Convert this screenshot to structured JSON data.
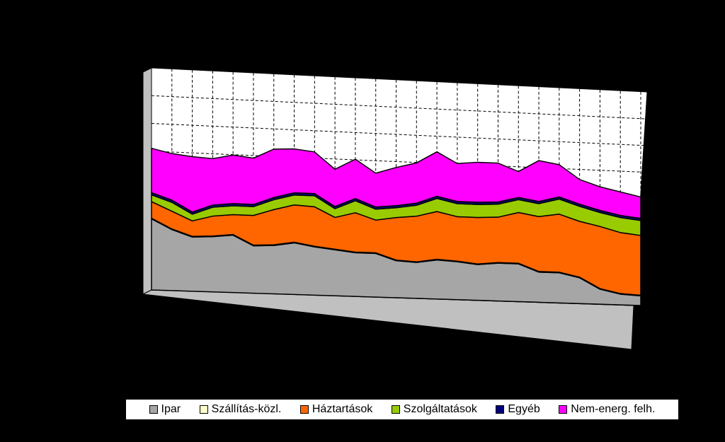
{
  "chart_data": {
    "type": "area",
    "stacked": true,
    "three_d": true,
    "grid": true,
    "legend_position": "bottom",
    "ylim": [
      0,
      100
    ],
    "series": [
      {
        "name": "Ipar",
        "color": "#a6a6a6",
        "values": [
          32,
          27.5,
          24.5,
          25,
          26,
          21.5,
          22,
          23.5,
          22,
          21,
          20,
          20,
          17,
          16.5,
          18,
          17.5,
          16.5,
          17.5,
          17.5,
          14,
          14,
          12,
          7,
          5,
          4.5
        ]
      },
      {
        "name": "Szállítás-közl.",
        "color": "#ffffcc",
        "values": [
          0.3,
          0.3,
          0.3,
          0.3,
          0.3,
          0.3,
          0.3,
          0.3,
          0.3,
          0.3,
          0.3,
          0.3,
          0.3,
          0.3,
          0.3,
          0.3,
          0.3,
          0.3,
          0.3,
          0.3,
          0.3,
          0.3,
          0.3,
          0.3,
          0.3
        ]
      },
      {
        "name": "Háztartások",
        "color": "#ff6600",
        "values": [
          7.5,
          8,
          7,
          9,
          9,
          13.5,
          16,
          17,
          18,
          14.5,
          18,
          15,
          19.5,
          21,
          22,
          20.5,
          21.5,
          21,
          23.5,
          25.5,
          27,
          26,
          29,
          28.5,
          28
        ]
      },
      {
        "name": "Szolgáltatások",
        "color": "#99cc00",
        "values": [
          3,
          4,
          3,
          4,
          4,
          4,
          4.5,
          4.5,
          5,
          4,
          5.5,
          5,
          4.5,
          5,
          6,
          6,
          6,
          6,
          6,
          6,
          7,
          7,
          6.5,
          7,
          7
        ]
      },
      {
        "name": "Egyéb",
        "color": "#000080",
        "values": [
          1,
          1,
          1,
          1,
          1,
          1,
          1,
          1,
          1,
          1,
          1,
          1,
          1,
          1,
          1,
          1,
          1,
          1,
          1,
          1,
          1,
          1,
          1,
          1,
          1
        ]
      },
      {
        "name": "Nem-energ. felh.",
        "color": "#ff00ff",
        "values": [
          20,
          21,
          25,
          21,
          22,
          21,
          22,
          20,
          19,
          17,
          18,
          15.5,
          17.5,
          18.5,
          20.5,
          17.5,
          18.5,
          18,
          12,
          19,
          15,
          11.5,
          11,
          11,
          10
        ]
      }
    ]
  }
}
